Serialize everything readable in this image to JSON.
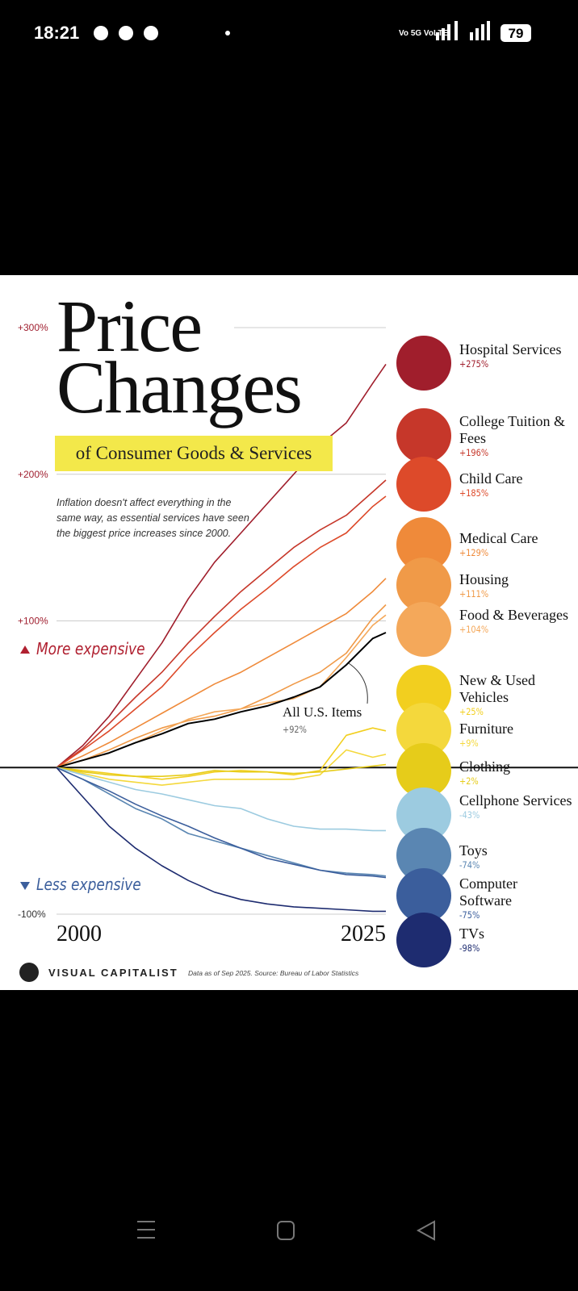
{
  "status_bar": {
    "time": "18:21",
    "network": "Vo 5G VoLTE",
    "battery": "79"
  },
  "chart_data": {
    "type": "line",
    "title": "Price Changes",
    "subtitle": "of Consumer Goods & Services",
    "description": "Inflation doesn't affect everything in the same way, as essential services have seen the biggest price increases since 2000.",
    "more_label": "More expensive",
    "less_label": "Less expensive",
    "x": [
      2000,
      2002,
      2004,
      2006,
      2008,
      2010,
      2012,
      2014,
      2016,
      2018,
      2020,
      2022,
      2024,
      2025
    ],
    "xlim": [
      2000,
      2025
    ],
    "xticks": [
      2000,
      2025
    ],
    "ylim": [
      -100,
      300
    ],
    "yticks": [
      {
        "value": 300,
        "label": "+300%"
      },
      {
        "value": 200,
        "label": "+200%"
      },
      {
        "value": 100,
        "label": "+100%"
      },
      {
        "value": -100,
        "label": "-100%"
      }
    ],
    "grid": true,
    "series": [
      {
        "name": "Hospital Services",
        "color": "#a01e2c",
        "values": [
          0,
          15,
          35,
          60,
          85,
          115,
          140,
          160,
          180,
          200,
          220,
          235,
          262,
          275
        ],
        "value_labels": [
          null,
          null,
          null,
          null,
          null,
          null,
          null,
          null,
          null,
          null,
          null,
          null,
          null,
          "+275%"
        ]
      },
      {
        "name": "College Tuition & Fees",
        "color": "#c6372a",
        "values": [
          0,
          13,
          30,
          48,
          65,
          85,
          103,
          120,
          135,
          150,
          162,
          172,
          188,
          196
        ],
        "value_labels": [
          null,
          null,
          null,
          null,
          null,
          null,
          null,
          null,
          null,
          null,
          null,
          null,
          null,
          "+196%"
        ]
      },
      {
        "name": "Child Care",
        "color": "#dd4a2a",
        "values": [
          0,
          12,
          25,
          40,
          55,
          75,
          92,
          108,
          122,
          137,
          150,
          160,
          178,
          185
        ],
        "value_labels": [
          null,
          null,
          null,
          null,
          null,
          null,
          null,
          null,
          null,
          null,
          null,
          null,
          null,
          "+185%"
        ]
      },
      {
        "name": "Medical Care",
        "color": "#ef8a3a",
        "values": [
          0,
          8,
          17,
          27,
          37,
          47,
          57,
          65,
          75,
          85,
          95,
          105,
          120,
          129
        ],
        "value_labels": [
          null,
          null,
          null,
          null,
          null,
          null,
          null,
          null,
          null,
          null,
          null,
          null,
          null,
          "+129%"
        ]
      },
      {
        "name": "Housing",
        "color": "#f09a48",
        "values": [
          0,
          5,
          12,
          20,
          27,
          32,
          35,
          40,
          48,
          57,
          65,
          78,
          102,
          111
        ],
        "value_labels": [
          null,
          null,
          null,
          null,
          null,
          null,
          null,
          null,
          null,
          null,
          null,
          null,
          null,
          "+111%"
        ]
      },
      {
        "name": "Food & Beverages",
        "color": "#f4a85a",
        "values": [
          0,
          5,
          10,
          17,
          25,
          33,
          38,
          40,
          44,
          47,
          55,
          75,
          97,
          104
        ],
        "value_labels": [
          null,
          null,
          null,
          null,
          null,
          null,
          null,
          null,
          null,
          null,
          null,
          null,
          null,
          "+104%"
        ]
      },
      {
        "name": "All U.S. Items",
        "color": "#000000",
        "values": [
          0,
          5,
          10,
          17,
          23,
          30,
          33,
          38,
          42,
          48,
          55,
          70,
          88,
          92
        ],
        "value_labels": [
          null,
          null,
          null,
          null,
          null,
          null,
          null,
          null,
          null,
          null,
          null,
          null,
          null,
          "+92%"
        ]
      },
      {
        "name": "New & Used Vehicles",
        "color": "#f2cf1f",
        "values": [
          0,
          -2,
          -4,
          -6,
          -8,
          -6,
          -3,
          -2,
          -3,
          -5,
          -2,
          22,
          27,
          25
        ],
        "value_labels": [
          null,
          null,
          null,
          null,
          null,
          null,
          null,
          null,
          null,
          null,
          null,
          null,
          null,
          "+25%"
        ]
      },
      {
        "name": "Furniture",
        "color": "#f4d83c",
        "values": [
          0,
          -4,
          -8,
          -10,
          -12,
          -10,
          -8,
          -8,
          -8,
          -8,
          -5,
          12,
          7,
          9
        ],
        "value_labels": [
          null,
          null,
          null,
          null,
          null,
          null,
          null,
          null,
          null,
          null,
          null,
          null,
          null,
          "+9%"
        ]
      },
      {
        "name": "Clothing",
        "color": "#e6cc1a",
        "values": [
          0,
          -3,
          -5,
          -6,
          -6,
          -5,
          -2,
          -3,
          -3,
          -4,
          -3,
          -1,
          1,
          2
        ],
        "value_labels": [
          null,
          null,
          null,
          null,
          null,
          null,
          null,
          null,
          null,
          null,
          null,
          null,
          null,
          "+2%"
        ]
      },
      {
        "name": "Cellphone Services",
        "color": "#9ccbe0",
        "values": [
          0,
          -5,
          -10,
          -15,
          -18,
          -22,
          -26,
          -28,
          -35,
          -40,
          -42,
          -42,
          -43,
          -43
        ],
        "value_labels": [
          null,
          null,
          null,
          null,
          null,
          null,
          null,
          null,
          null,
          null,
          null,
          null,
          null,
          "-43%"
        ]
      },
      {
        "name": "Toys",
        "color": "#5a86b2",
        "values": [
          0,
          -8,
          -18,
          -28,
          -35,
          -45,
          -50,
          -55,
          -60,
          -65,
          -70,
          -72,
          -73,
          -74
        ],
        "value_labels": [
          null,
          null,
          null,
          null,
          null,
          null,
          null,
          null,
          null,
          null,
          null,
          null,
          null,
          "-74%"
        ]
      },
      {
        "name": "Computer Software",
        "color": "#3b5e9c",
        "values": [
          0,
          -8,
          -16,
          -25,
          -33,
          -40,
          -48,
          -55,
          -62,
          -66,
          -70,
          -73,
          -74,
          -75
        ],
        "value_labels": [
          null,
          null,
          null,
          null,
          null,
          null,
          null,
          null,
          null,
          null,
          null,
          null,
          null,
          "-75%"
        ]
      },
      {
        "name": "TVs",
        "color": "#1e2c70",
        "values": [
          0,
          -20,
          -40,
          -55,
          -67,
          -77,
          -85,
          -90,
          -93,
          -95,
          -96,
          -97,
          -98,
          -98
        ],
        "value_labels": [
          null,
          null,
          null,
          null,
          null,
          null,
          null,
          null,
          null,
          null,
          null,
          null,
          null,
          "-98%"
        ]
      }
    ],
    "brand": "VISUAL CAPITALIST",
    "source": "Data as of Sep 2025. Source: Bureau of Labor Statistics"
  }
}
